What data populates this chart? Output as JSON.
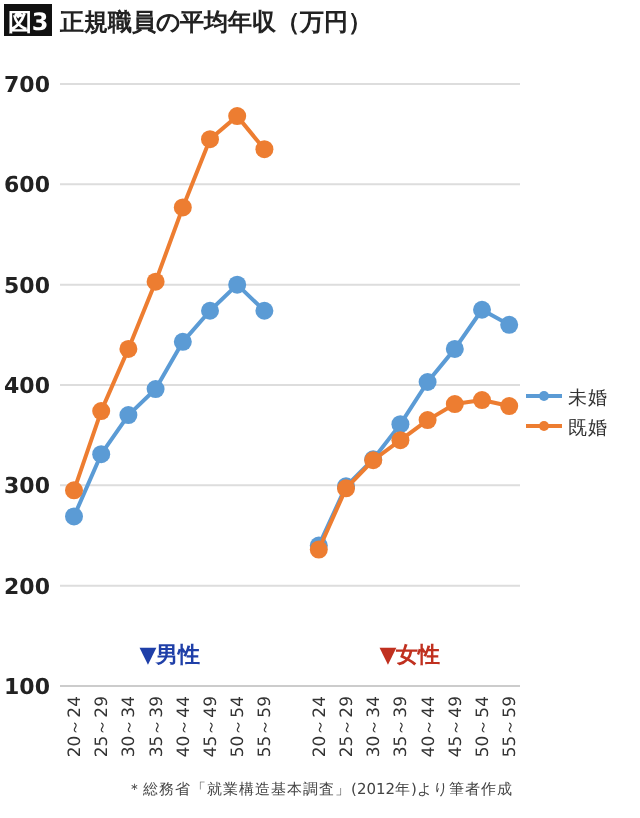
{
  "chart_data": {
    "type": "line",
    "title": "図3 正規職員の平均年収（万円）",
    "categories": [
      "20～24",
      "25～29",
      "30～34",
      "35～39",
      "40～44",
      "45～49",
      "50～54",
      "55～59",
      null,
      "20～24",
      "25～29",
      "30～34",
      "35～39",
      "40～44",
      "45～49",
      "50～54",
      "55～59"
    ],
    "series": [
      {
        "name": "未婚",
        "color": "#5b9bd5",
        "values": [
          269,
          331,
          370,
          396,
          443,
          474,
          500,
          474,
          null,
          240,
          299,
          326,
          361,
          403,
          436,
          475,
          460
        ]
      },
      {
        "name": "既婚",
        "color": "#ed7d31",
        "values": [
          295,
          374,
          436,
          503,
          577,
          645,
          668,
          635,
          null,
          236,
          297,
          325,
          345,
          365,
          381,
          385,
          379
        ]
      }
    ],
    "ylim": [
      100,
      700
    ],
    "yticks": [
      100,
      200,
      300,
      400,
      500,
      600,
      700
    ],
    "grid": "y",
    "legend": "right",
    "marker": "circle",
    "line_style": "solid",
    "annotations": [
      "▼男性",
      "▼女性",
      "＊総務省「就業構造基本調査」(2012年)より筆者作成"
    ]
  }
}
